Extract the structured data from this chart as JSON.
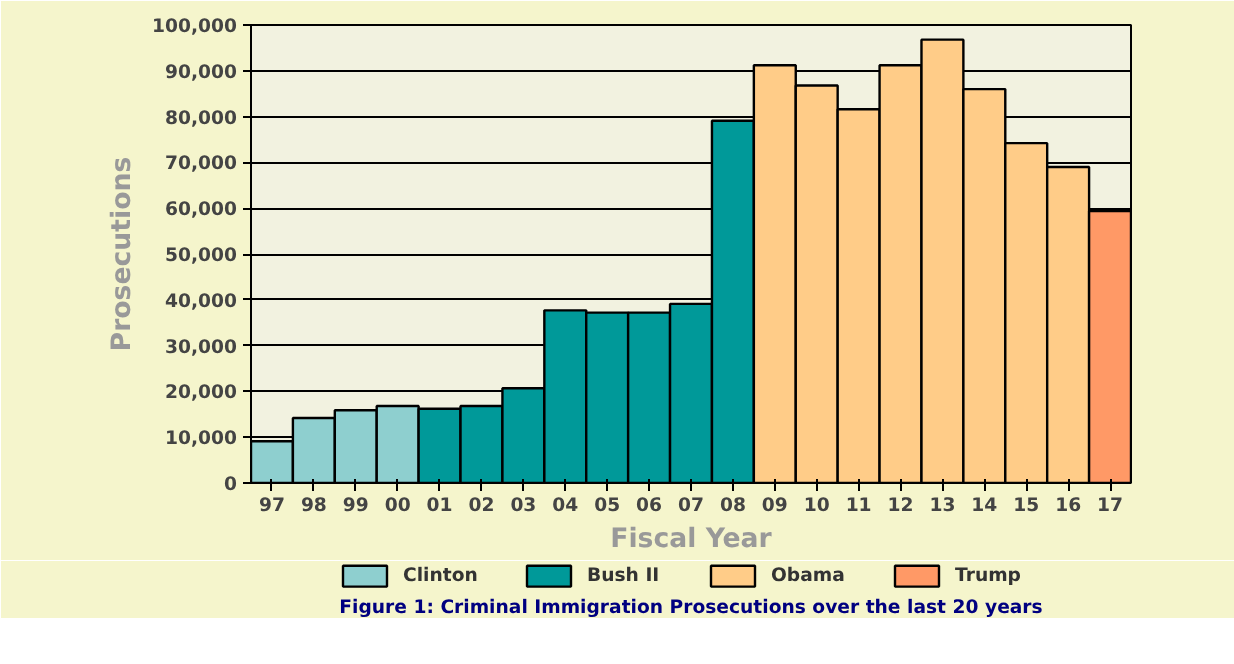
{
  "chart_data": {
    "type": "bar",
    "title": "Figure 1: Criminal Immigration Prosecutions over the last 20 years",
    "xlabel": "Fiscal Year",
    "ylabel": "Prosecutions",
    "categories": [
      "97",
      "98",
      "99",
      "00",
      "01",
      "02",
      "03",
      "04",
      "05",
      "06",
      "07",
      "08",
      "09",
      "10",
      "11",
      "12",
      "13",
      "14",
      "15",
      "16",
      "17"
    ],
    "series": [
      {
        "name": "Clinton",
        "color": "#8ecfcf",
        "values": [
          9100,
          14200,
          15900,
          16800,
          null,
          null,
          null,
          null,
          null,
          null,
          null,
          null,
          null,
          null,
          null,
          null,
          null,
          null,
          null,
          null,
          null
        ]
      },
      {
        "name": "Bush II",
        "color": "#009999",
        "values": [
          null,
          null,
          null,
          null,
          16200,
          16800,
          20700,
          37700,
          37200,
          37200,
          39100,
          79100,
          null,
          null,
          null,
          null,
          null,
          null,
          null,
          null,
          null
        ]
      },
      {
        "name": "Obama",
        "color": "#ffcc88",
        "values": [
          null,
          null,
          null,
          null,
          null,
          null,
          null,
          null,
          null,
          null,
          null,
          null,
          91200,
          86800,
          81600,
          91200,
          96800,
          86000,
          74200,
          69000,
          null
        ]
      },
      {
        "name": "Trump",
        "color": "#ff9966",
        "values": [
          null,
          null,
          null,
          null,
          null,
          null,
          null,
          null,
          null,
          null,
          null,
          null,
          null,
          null,
          null,
          null,
          null,
          null,
          null,
          null,
          59400
        ]
      }
    ],
    "ylim": [
      0,
      100000
    ],
    "yticks": [
      {
        "value": 0,
        "label": "0"
      },
      {
        "value": 10000,
        "label": "10,000"
      },
      {
        "value": 20000,
        "label": "20,000"
      },
      {
        "value": 30000,
        "label": "30,000"
      },
      {
        "value": 40000,
        "label": "40,000"
      },
      {
        "value": 50000,
        "label": "50,000"
      },
      {
        "value": 60000,
        "label": "60,000"
      },
      {
        "value": 70000,
        "label": "70,000"
      },
      {
        "value": 80000,
        "label": "80,000"
      },
      {
        "value": 90000,
        "label": "90,000"
      },
      {
        "value": 100000,
        "label": "100,000"
      }
    ],
    "grid": "y",
    "legend": "bottom"
  }
}
